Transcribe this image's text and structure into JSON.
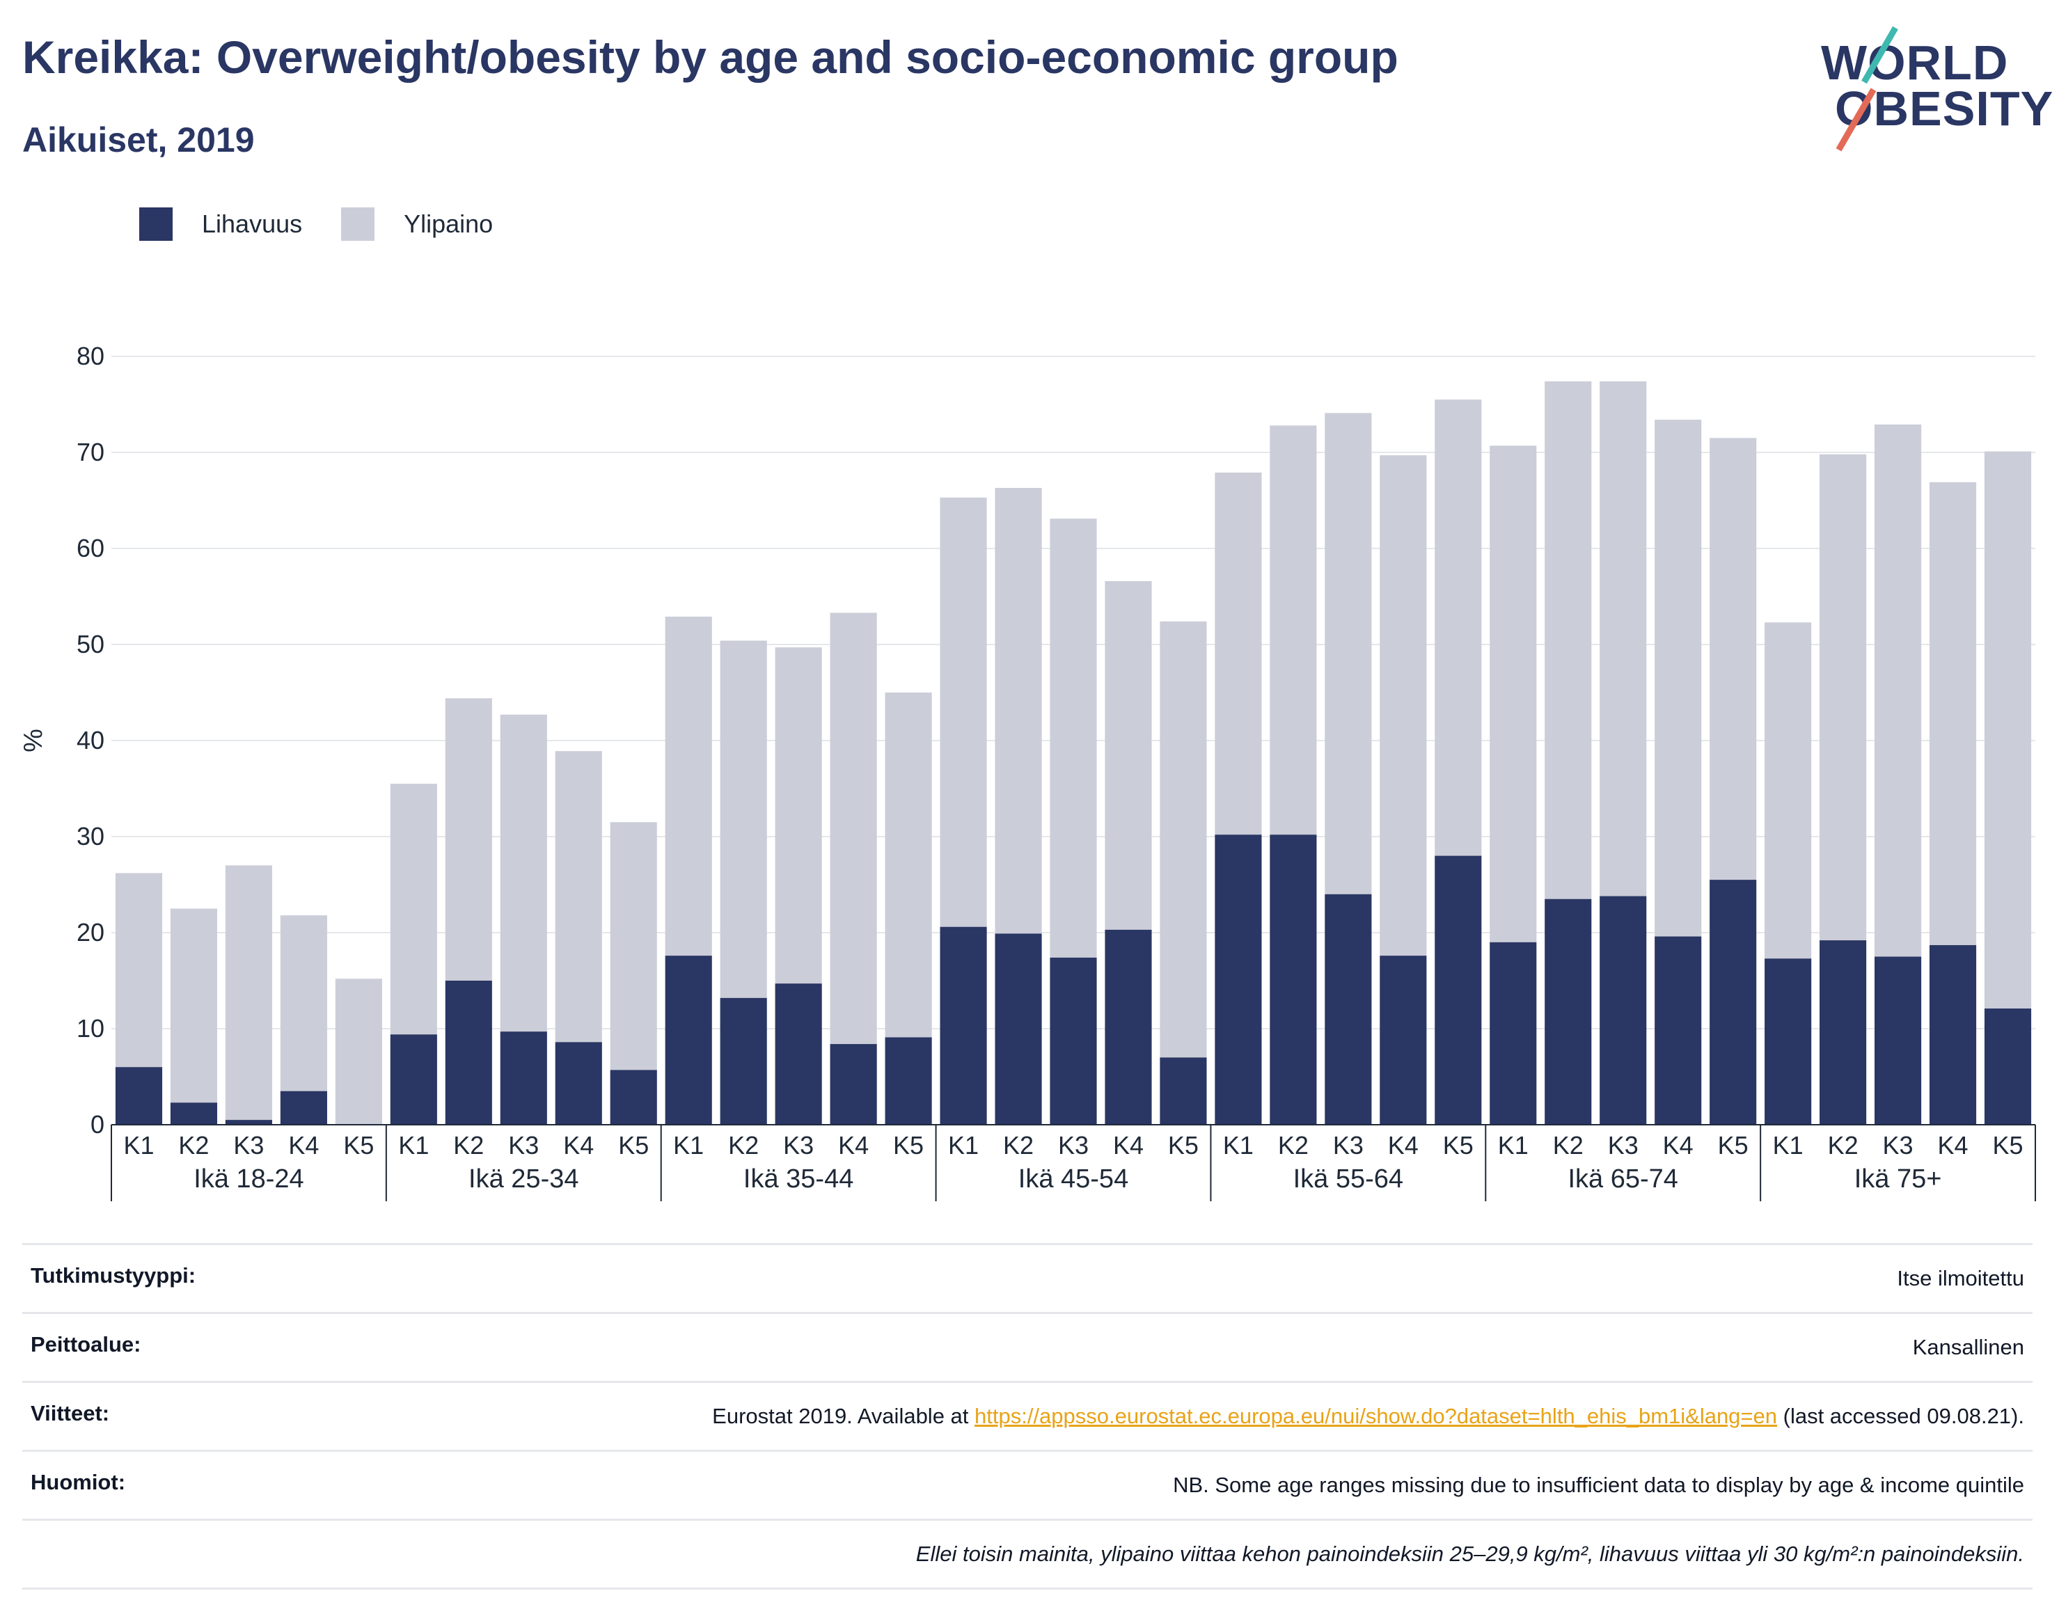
{
  "header": {
    "title": "Kreikka: Overweight/obesity by age and socio-economic group",
    "subtitle": "Aikuiset, 2019"
  },
  "logo": {
    "line1": "WORLD",
    "line2": "OBESITY"
  },
  "legend": [
    {
      "label": "Lihavuus",
      "color": "#2a3663"
    },
    {
      "label": "Ylipaino",
      "color": "#cbcdd8"
    }
  ],
  "chart_data": {
    "type": "bar",
    "stacked": true,
    "ylabel": "%",
    "ylim": [
      0,
      80
    ],
    "yticks": [
      0,
      10,
      20,
      30,
      40,
      50,
      60,
      70,
      80
    ],
    "grid": true,
    "legend_position": "top-left",
    "group_labels": [
      "Ikä 18-24",
      "Ikä 25-34",
      "Ikä 35-44",
      "Ikä 45-54",
      "Ikä 55-64",
      "Ikä 65-74",
      "Ikä 75+"
    ],
    "sub_categories": [
      "K1",
      "K2",
      "K3",
      "K4",
      "K5"
    ],
    "series": [
      {
        "name": "Lihavuus",
        "color": "#2a3663",
        "values": [
          6.0,
          2.3,
          0.5,
          3.5,
          0.0,
          9.4,
          15.0,
          9.7,
          8.6,
          5.7,
          17.6,
          13.2,
          14.7,
          8.4,
          9.1,
          20.6,
          19.9,
          17.4,
          20.3,
          7.0,
          30.2,
          30.2,
          24.0,
          17.6,
          28.0,
          19.0,
          23.5,
          23.8,
          19.6,
          25.5,
          17.3,
          19.2,
          17.5,
          18.7,
          12.1
        ]
      },
      {
        "name": "Ylipaino",
        "color": "#cbcdd8",
        "values": [
          20.2,
          20.2,
          26.5,
          18.3,
          15.2,
          26.1,
          29.4,
          33.0,
          30.3,
          25.8,
          35.3,
          37.2,
          35.0,
          44.9,
          35.9,
          44.7,
          46.4,
          45.7,
          36.3,
          45.4,
          37.7,
          42.6,
          50.1,
          52.1,
          47.5,
          51.7,
          53.9,
          53.6,
          53.8,
          46.0,
          35.0,
          50.6,
          55.4,
          48.2,
          58.0
        ]
      }
    ]
  },
  "info": {
    "rows": [
      {
        "label": "Tutkimustyyppi:",
        "value": "Itse ilmoitettu"
      },
      {
        "label": "Peittoalue:",
        "value": "Kansallinen"
      },
      {
        "label": "Viitteet:",
        "value_prefix": "Eurostat 2019. Available at ",
        "link": "https://appsso.eurostat.ec.europa.eu/nui/show.do?dataset=hlth_ehis_bm1i&lang=en",
        "value_suffix": " (last accessed 09.08.21)."
      },
      {
        "label": "Huomiot:",
        "value": "NB. Some age ranges missing due to insufficient data to display by age & income quintile"
      }
    ],
    "footnote": "Ellei toisin mainita, ylipaino viittaa kehon painoindeksiin 25–29,9 kg/m², lihavuus viittaa yli 30 kg/m²:n painoindeksiin."
  }
}
